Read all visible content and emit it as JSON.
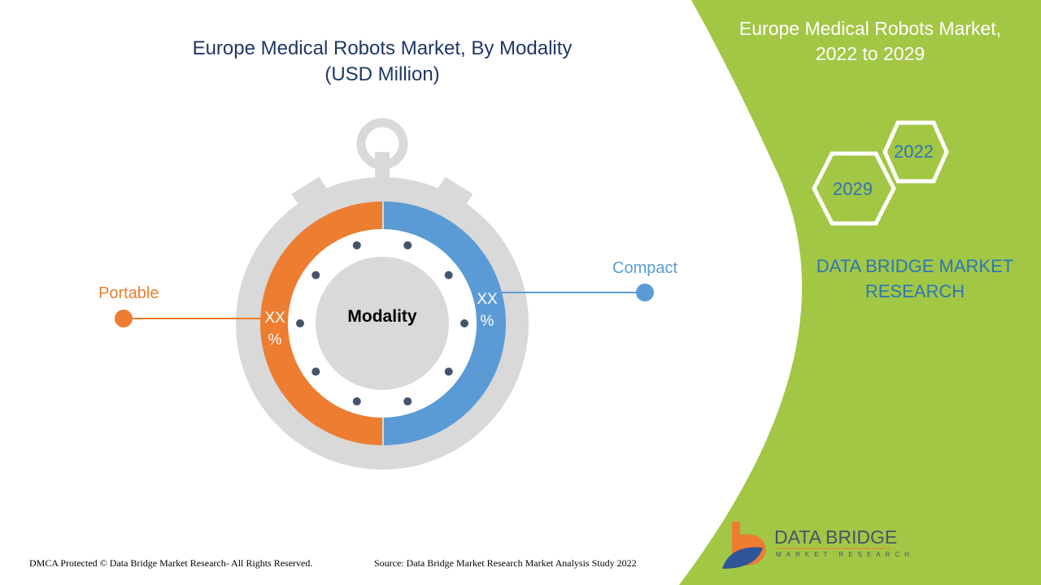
{
  "title": {
    "line1": "Europe Medical Robots Market, By Modality",
    "line2": "(USD Million)"
  },
  "side": {
    "title_line1": "Europe Medical Robots Market,",
    "title_line2": "2022 to 2029",
    "year_start": "2022",
    "year_end": "2029",
    "brand_line1": "DATA BRIDGE MARKET",
    "brand_line2": "RESEARCH"
  },
  "chart": {
    "center_label": "Modality",
    "segments": [
      {
        "label": "Portable",
        "value": "XX %",
        "value_line1": "XX",
        "value_line2": "%",
        "color": "#ed7d31"
      },
      {
        "label": "Compact",
        "value": "XX %",
        "value_line1": "XX",
        "value_line2": "%",
        "color": "#5b9bd5"
      }
    ]
  },
  "logo": {
    "line1": "DATA BRIDGE",
    "line2": "MARKET RESEARCH"
  },
  "footer": {
    "dmca": "DMCA Protected © Data Bridge Market Research- All Rights Reserved.",
    "source": "Source: Data Bridge Market Research Market Analysis Study 2022"
  },
  "colors": {
    "green": "#a2c745",
    "navy": "#1f3864",
    "blue": "#5b9bd5",
    "orange": "#ed7d31",
    "gray": "#d9d9d9",
    "dot": "#44546a"
  }
}
